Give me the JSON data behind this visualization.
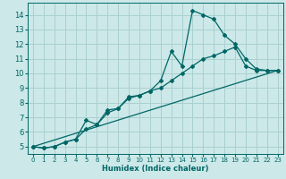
{
  "xlabel": "Humidex (Indice chaleur)",
  "bg_color": "#cce8e8",
  "grid_color": "#aad0d0",
  "line_color": "#006666",
  "xlim": [
    -0.5,
    23.5
  ],
  "ylim": [
    4.5,
    14.8
  ],
  "xticks": [
    0,
    1,
    2,
    3,
    4,
    5,
    6,
    7,
    8,
    9,
    10,
    11,
    12,
    13,
    14,
    15,
    16,
    17,
    18,
    19,
    20,
    21,
    22,
    23
  ],
  "yticks": [
    5,
    6,
    7,
    8,
    9,
    10,
    11,
    12,
    13,
    14
  ],
  "series1_x": [
    0,
    1,
    2,
    3,
    4,
    5,
    6,
    7,
    8,
    9,
    10,
    11,
    12,
    13,
    14,
    15,
    16,
    17,
    18,
    19,
    20,
    21,
    22,
    23
  ],
  "series1_y": [
    5.0,
    4.9,
    5.0,
    5.3,
    5.5,
    6.2,
    6.5,
    7.3,
    7.6,
    8.3,
    8.5,
    8.8,
    9.0,
    9.5,
    10.0,
    10.5,
    11.0,
    11.2,
    11.5,
    11.8,
    10.5,
    10.2,
    10.2,
    10.2
  ],
  "series2_x": [
    0,
    1,
    2,
    3,
    4,
    5,
    6,
    7,
    8,
    9,
    10,
    11,
    12,
    13,
    14,
    15,
    16,
    17,
    18,
    19,
    20,
    21,
    22,
    23
  ],
  "series2_y": [
    5.0,
    4.9,
    5.0,
    5.3,
    5.5,
    6.8,
    6.5,
    7.5,
    7.6,
    8.4,
    8.5,
    8.8,
    9.5,
    11.5,
    10.5,
    14.3,
    14.0,
    13.7,
    12.6,
    12.0,
    11.0,
    10.3,
    10.2,
    10.2
  ],
  "series3_x": [
    0,
    23
  ],
  "series3_y": [
    5.0,
    10.2
  ]
}
